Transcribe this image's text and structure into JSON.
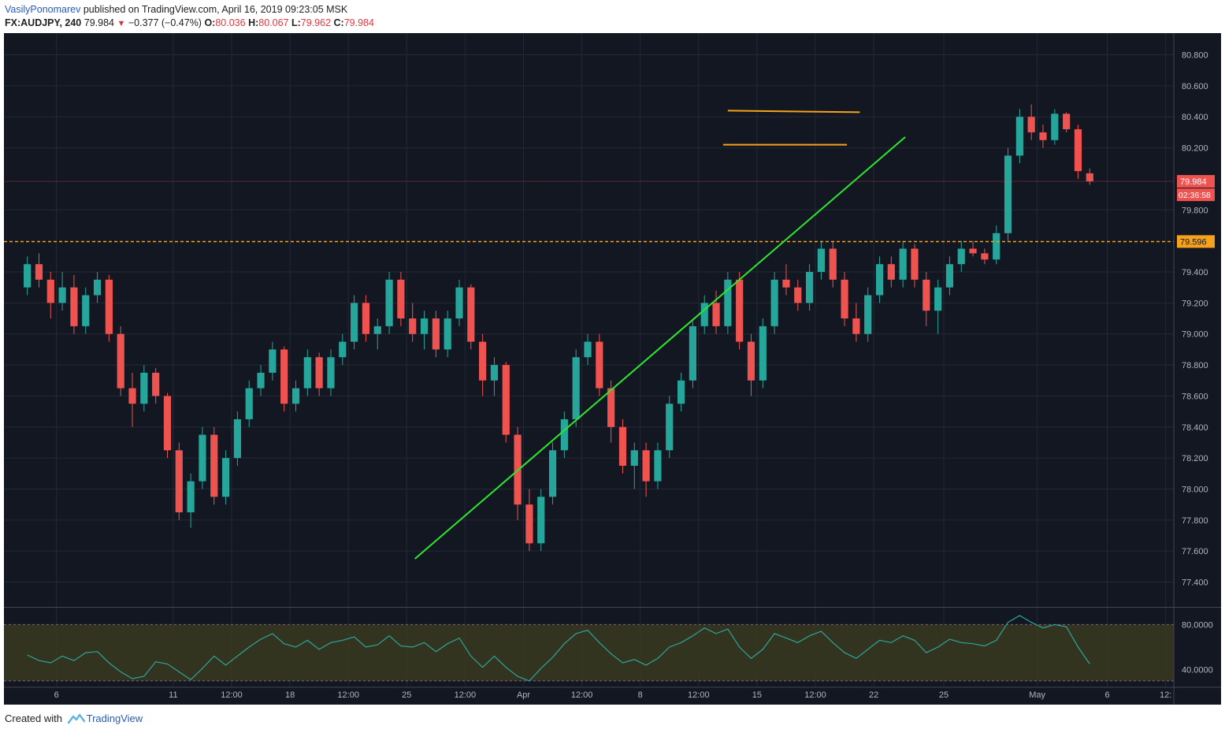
{
  "header": {
    "author": "VasilyPonomarev",
    "published": " published on TradingView.com, April 16, 2019 09:23:05 MSK",
    "symbol": "FX:AUDJPY, 240",
    "last": "79.984",
    "change": "−0.377 (−0.47%)",
    "o_label": "O:",
    "o": "80.036",
    "h_label": "H:",
    "h": "80.067",
    "l_label": "L:",
    "l": "79.962",
    "c_label": "C:",
    "c": "79.984"
  },
  "footer": {
    "created_with": "Created with",
    "brand": "TradingView"
  },
  "colors": {
    "background": "#131722",
    "up": "#26a69a",
    "down": "#ef5350",
    "trendline": "#2ee62e",
    "level": "#f7a21b",
    "rsi_line": "#2ea49a",
    "rsi_band": "#3a3a1e"
  },
  "chart_data": {
    "type": "candlestick",
    "symbol": "FX:AUDJPY",
    "interval": "240",
    "price_axis": {
      "ticks": [
        "80.800",
        "80.600",
        "80.400",
        "80.200",
        "79.800",
        "79.400",
        "79.200",
        "79.000",
        "78.800",
        "78.600",
        "78.400",
        "78.200",
        "78.000",
        "77.800",
        "77.600",
        "77.400"
      ],
      "range": [
        77.24,
        80.94
      ]
    },
    "time_axis": {
      "labels": [
        {
          "t": 2.5,
          "label": "6"
        },
        {
          "t": 12.5,
          "label": "11"
        },
        {
          "t": 17.5,
          "label": "12:00"
        },
        {
          "t": 22.5,
          "label": "18"
        },
        {
          "t": 27.5,
          "label": "12:00"
        },
        {
          "t": 32.5,
          "label": "25"
        },
        {
          "t": 37.5,
          "label": "12:00"
        },
        {
          "t": 42.5,
          "label": "Apr"
        },
        {
          "t": 47.5,
          "label": "12:00"
        },
        {
          "t": 52.5,
          "label": "8"
        },
        {
          "t": 57.5,
          "label": "12:00"
        },
        {
          "t": 62.5,
          "label": "15"
        },
        {
          "t": 67.5,
          "label": "12:00"
        },
        {
          "t": 72.5,
          "label": "22"
        },
        {
          "t": 78.5,
          "label": "25"
        },
        {
          "t": 86.5,
          "label": "May"
        },
        {
          "t": 92.5,
          "label": "6"
        },
        {
          "t": 97.5,
          "label": "12:"
        }
      ],
      "range": [
        -2,
        98.2
      ]
    },
    "candles": [
      [
        79.3,
        79.5,
        79.25,
        79.45
      ],
      [
        79.45,
        79.52,
        79.3,
        79.35
      ],
      [
        79.35,
        79.4,
        79.1,
        79.2
      ],
      [
        79.2,
        79.4,
        79.15,
        79.3
      ],
      [
        79.3,
        79.38,
        79.0,
        79.05
      ],
      [
        79.05,
        79.3,
        79.0,
        79.25
      ],
      [
        79.25,
        79.4,
        79.2,
        79.35
      ],
      [
        79.35,
        79.38,
        78.95,
        79.0
      ],
      [
        79.0,
        79.05,
        78.6,
        78.65
      ],
      [
        78.65,
        78.75,
        78.4,
        78.55
      ],
      [
        78.55,
        78.8,
        78.5,
        78.75
      ],
      [
        78.75,
        78.78,
        78.55,
        78.6
      ],
      [
        78.6,
        78.62,
        78.2,
        78.25
      ],
      [
        78.25,
        78.3,
        77.8,
        77.85
      ],
      [
        77.85,
        78.1,
        77.75,
        78.05
      ],
      [
        78.05,
        78.4,
        78.0,
        78.35
      ],
      [
        78.35,
        78.4,
        77.9,
        77.95
      ],
      [
        77.95,
        78.25,
        77.9,
        78.2
      ],
      [
        78.2,
        78.5,
        78.15,
        78.45
      ],
      [
        78.45,
        78.7,
        78.4,
        78.65
      ],
      [
        78.65,
        78.8,
        78.6,
        78.75
      ],
      [
        78.75,
        78.95,
        78.7,
        78.9
      ],
      [
        78.9,
        78.92,
        78.5,
        78.55
      ],
      [
        78.55,
        78.7,
        78.5,
        78.65
      ],
      [
        78.65,
        78.9,
        78.6,
        78.85
      ],
      [
        78.85,
        78.88,
        78.6,
        78.65
      ],
      [
        78.65,
        78.9,
        78.6,
        78.85
      ],
      [
        78.85,
        79.0,
        78.8,
        78.95
      ],
      [
        78.95,
        79.25,
        78.9,
        79.2
      ],
      [
        79.2,
        79.25,
        78.95,
        79.0
      ],
      [
        79.0,
        79.1,
        78.9,
        79.05
      ],
      [
        79.05,
        79.4,
        79.0,
        79.35
      ],
      [
        79.35,
        79.4,
        79.05,
        79.1
      ],
      [
        79.1,
        79.2,
        78.95,
        79.0
      ],
      [
        79.0,
        79.15,
        78.9,
        79.1
      ],
      [
        79.1,
        79.15,
        78.85,
        78.9
      ],
      [
        78.9,
        79.15,
        78.85,
        79.1
      ],
      [
        79.1,
        79.35,
        79.05,
        79.3
      ],
      [
        79.3,
        79.32,
        78.9,
        78.95
      ],
      [
        78.95,
        79.0,
        78.6,
        78.7
      ],
      [
        78.7,
        78.85,
        78.6,
        78.8
      ],
      [
        78.8,
        78.82,
        78.3,
        78.35
      ],
      [
        78.35,
        78.4,
        77.8,
        77.9
      ],
      [
        77.9,
        78.0,
        77.6,
        77.65
      ],
      [
        77.65,
        78.0,
        77.6,
        77.95
      ],
      [
        77.95,
        78.3,
        77.9,
        78.25
      ],
      [
        78.25,
        78.5,
        78.2,
        78.45
      ],
      [
        78.45,
        78.9,
        78.4,
        78.85
      ],
      [
        78.85,
        79.0,
        78.8,
        78.95
      ],
      [
        78.95,
        79.0,
        78.6,
        78.65
      ],
      [
        78.65,
        78.7,
        78.3,
        78.4
      ],
      [
        78.4,
        78.45,
        78.1,
        78.15
      ],
      [
        78.15,
        78.3,
        78.0,
        78.25
      ],
      [
        78.25,
        78.3,
        77.95,
        78.05
      ],
      [
        78.05,
        78.3,
        78.0,
        78.25
      ],
      [
        78.25,
        78.6,
        78.2,
        78.55
      ],
      [
        78.55,
        78.75,
        78.5,
        78.7
      ],
      [
        78.7,
        79.1,
        78.65,
        79.05
      ],
      [
        79.05,
        79.25,
        79.0,
        79.2
      ],
      [
        79.2,
        79.28,
        79.0,
        79.05
      ],
      [
        79.05,
        79.4,
        79.0,
        79.35
      ],
      [
        79.35,
        79.4,
        78.9,
        78.95
      ],
      [
        78.95,
        79.0,
        78.6,
        78.7
      ],
      [
        78.7,
        79.1,
        78.65,
        79.05
      ],
      [
        79.05,
        79.4,
        79.0,
        79.35
      ],
      [
        79.35,
        79.45,
        79.25,
        79.3
      ],
      [
        79.3,
        79.35,
        79.15,
        79.2
      ],
      [
        79.2,
        79.45,
        79.15,
        79.4
      ],
      [
        79.4,
        79.6,
        79.35,
        79.55
      ],
      [
        79.55,
        79.6,
        79.3,
        79.35
      ],
      [
        79.35,
        79.4,
        79.05,
        79.1
      ],
      [
        79.1,
        79.2,
        78.95,
        79.0
      ],
      [
        79.0,
        79.3,
        78.95,
        79.25
      ],
      [
        79.25,
        79.5,
        79.2,
        79.45
      ],
      [
        79.45,
        79.5,
        79.3,
        79.35
      ],
      [
        79.35,
        79.6,
        79.3,
        79.55
      ],
      [
        79.55,
        79.58,
        79.3,
        79.35
      ],
      [
        79.35,
        79.4,
        79.05,
        79.15
      ],
      [
        79.15,
        79.35,
        79.0,
        79.3
      ],
      [
        79.3,
        79.5,
        79.25,
        79.45
      ],
      [
        79.45,
        79.6,
        79.4,
        79.55
      ],
      [
        79.55,
        79.6,
        79.5,
        79.52
      ],
      [
        79.52,
        79.55,
        79.45,
        79.48
      ],
      [
        79.48,
        79.7,
        79.45,
        79.65
      ],
      [
        79.65,
        80.2,
        79.6,
        80.15
      ],
      [
        80.15,
        80.45,
        80.1,
        80.4
      ],
      [
        80.4,
        80.48,
        80.25,
        80.3
      ],
      [
        80.3,
        80.35,
        80.2,
        80.25
      ],
      [
        80.25,
        80.45,
        80.22,
        80.42
      ],
      [
        80.42,
        80.43,
        80.3,
        80.32
      ],
      [
        80.32,
        80.35,
        80.0,
        80.05
      ],
      [
        80.036,
        80.067,
        79.962,
        79.984
      ]
    ],
    "rsi": {
      "range": [
        25,
        95
      ],
      "band": [
        30,
        80
      ],
      "ticks": [
        "80.0000",
        "40.0000"
      ],
      "values": [
        53,
        48,
        46,
        52,
        48,
        55,
        56,
        46,
        38,
        32,
        34,
        47,
        45,
        38,
        31,
        41,
        52,
        44,
        52,
        60,
        67,
        72,
        63,
        60,
        66,
        58,
        64,
        66,
        69,
        60,
        62,
        70,
        61,
        60,
        64,
        56,
        63,
        68,
        52,
        42,
        52,
        42,
        34,
        30,
        41,
        51,
        63,
        72,
        75,
        64,
        54,
        46,
        49,
        44,
        50,
        60,
        64,
        70,
        77,
        72,
        76,
        60,
        50,
        58,
        72,
        68,
        64,
        70,
        74,
        64,
        55,
        50,
        58,
        66,
        64,
        70,
        66,
        55,
        60,
        67,
        64,
        63,
        61,
        66,
        82,
        88,
        82,
        77,
        80,
        78,
        60,
        45
      ]
    },
    "annotations": {
      "horizontal_level": 79.596,
      "trendline": [
        [
          33.2,
          77.55
        ],
        [
          75.2,
          80.27
        ]
      ],
      "resistance_top": [
        [
          60,
          80.44
        ],
        [
          71.3,
          80.43
        ]
      ],
      "resistance_bottom": [
        [
          59.6,
          80.22
        ],
        [
          70.2,
          80.22
        ]
      ],
      "last_price_label": "79.984",
      "countdown_label": "02:36:58",
      "level_label": "79.596"
    }
  }
}
